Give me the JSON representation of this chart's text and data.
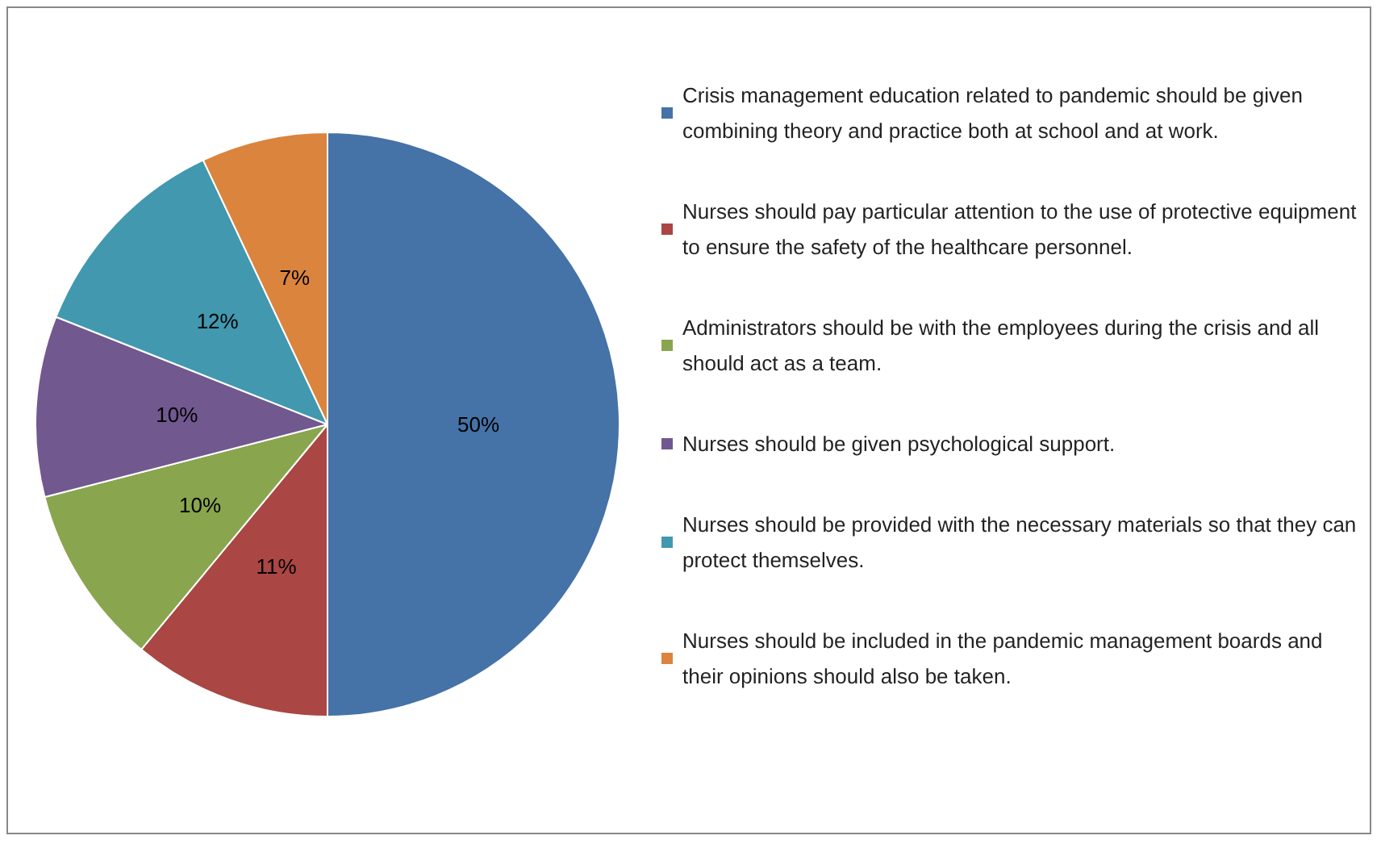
{
  "chart_data": {
    "type": "pie",
    "categories": [
      "Crisis management education related to pandemic should be given combining theory and practice both at school and at work.",
      "Nurses should pay particular attention to the use of protective equipment to ensure the safety of the healthcare personnel.",
      "Administrators should be with the employees during the crisis and all should act as a team.",
      "Nurses should be given psychological support.",
      "Nurses should be provided with the necessary materials so that they can protect themselves.",
      "Nurses should be included in the pandemic management boards and their opinions should also be taken."
    ],
    "values": [
      50,
      11,
      10,
      10,
      12,
      7
    ],
    "colors": [
      "#4572a7",
      "#aa4643",
      "#89a54e",
      "#71588f",
      "#4198af",
      "#db843d"
    ],
    "value_labels": [
      "50%",
      "11%",
      "10%",
      "10%",
      "12%",
      "7%"
    ],
    "legend": "right"
  }
}
